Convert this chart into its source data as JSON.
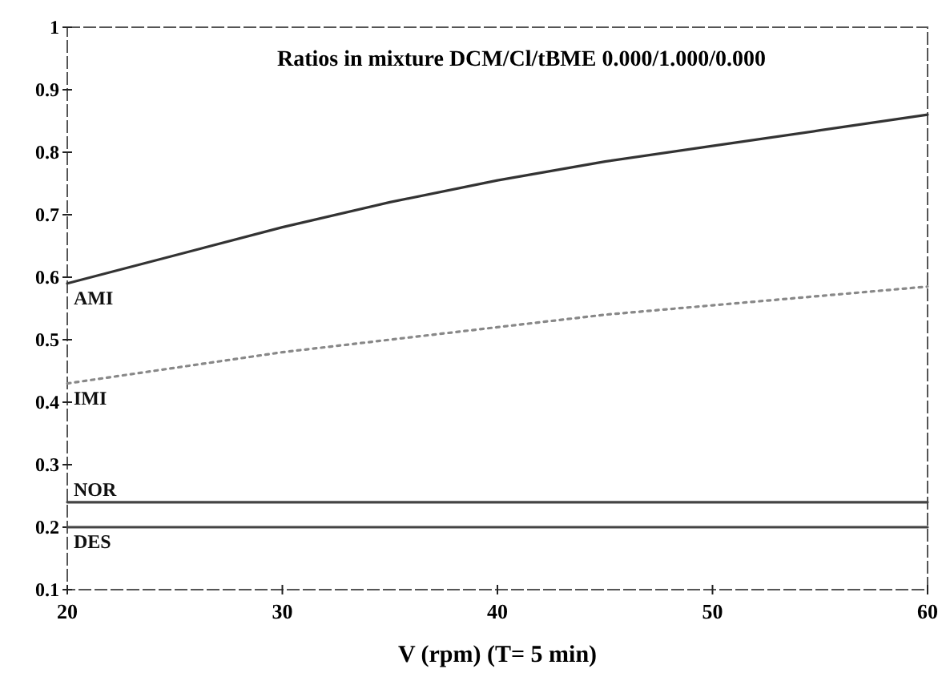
{
  "chart_data": {
    "type": "line",
    "title": "Ratios in mixture DCM/Cl/tBME 0.000/1.000/0.000",
    "xlabel": "V (rpm) (T= 5 min)",
    "x": [
      20,
      25,
      30,
      35,
      40,
      45,
      50,
      55,
      60
    ],
    "xlim": [
      20,
      60
    ],
    "xticks": [
      20,
      30,
      40,
      50,
      60
    ],
    "ylim": [
      0.1,
      1
    ],
    "yticks": [
      0.1,
      0.2,
      0.3,
      0.4,
      0.5,
      0.6,
      0.7,
      0.8,
      0.9,
      1
    ],
    "grid": false,
    "marker": "none",
    "line_style": "solid",
    "series": [
      {
        "name": "AMI",
        "color": "#333333",
        "values": [
          0.59,
          0.635,
          0.68,
          0.72,
          0.755,
          0.785,
          0.81,
          0.835,
          0.86
        ]
      },
      {
        "name": "IMI",
        "color": "#888888",
        "line_style": "dotted",
        "values": [
          0.43,
          0.455,
          0.48,
          0.5,
          0.52,
          0.54,
          0.555,
          0.57,
          0.585
        ]
      },
      {
        "name": "NOR",
        "color": "#444444",
        "values": [
          0.24,
          0.24,
          0.24,
          0.24,
          0.24,
          0.24,
          0.24,
          0.24,
          0.24
        ]
      },
      {
        "name": "DES",
        "color": "#444444",
        "values": [
          0.2,
          0.2,
          0.2,
          0.2,
          0.2,
          0.2,
          0.2,
          0.2,
          0.2
        ]
      }
    ]
  }
}
